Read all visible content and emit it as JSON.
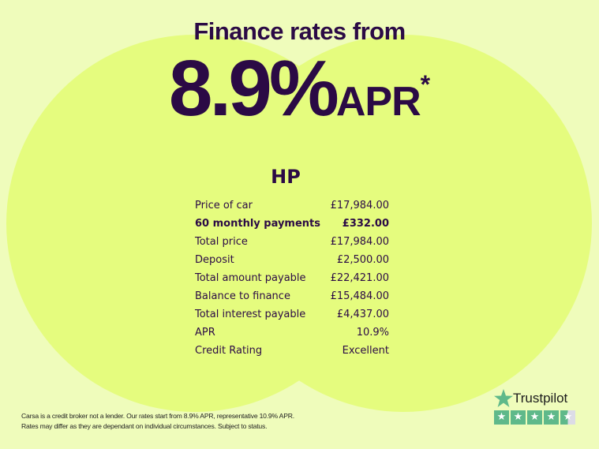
{
  "headline": "Finance rates from",
  "rate": {
    "value": "8.9%",
    "unit": "APR",
    "asterisk": "*"
  },
  "product": "HP",
  "rows": [
    {
      "label": "Price of car",
      "value": "£17,984.00",
      "bold": false
    },
    {
      "label": "60 monthly payments",
      "value": "£332.00",
      "bold": true
    },
    {
      "label": "Total price",
      "value": "£17,984.00",
      "bold": false
    },
    {
      "label": "Deposit",
      "value": "£2,500.00",
      "bold": false
    },
    {
      "label": "Total amount payable",
      "value": "£22,421.00",
      "bold": false
    },
    {
      "label": "Balance to finance",
      "value": "£15,484.00",
      "bold": false
    },
    {
      "label": "Total interest payable",
      "value": "£4,437.00",
      "bold": false
    },
    {
      "label": "APR",
      "value": "10.9%",
      "bold": false
    },
    {
      "label": "Credit Rating",
      "value": "Excellent",
      "bold": false
    }
  ],
  "disclaimer": [
    "Carsa is a credit broker not a lender. Our rates start from 8.9% APR, representative 10.9% APR.",
    "Rates may differ as they are dependant on individual circumstances. Subject to status."
  ],
  "trustpilot": {
    "name": "Trustpilot",
    "icon": "star-icon",
    "rating_stars": 4.5,
    "max_stars": 5,
    "color": "#5fb98a"
  },
  "colors": {
    "background": "#effcbb",
    "circle": "#e5fc7e",
    "text": "#2b0a45"
  }
}
